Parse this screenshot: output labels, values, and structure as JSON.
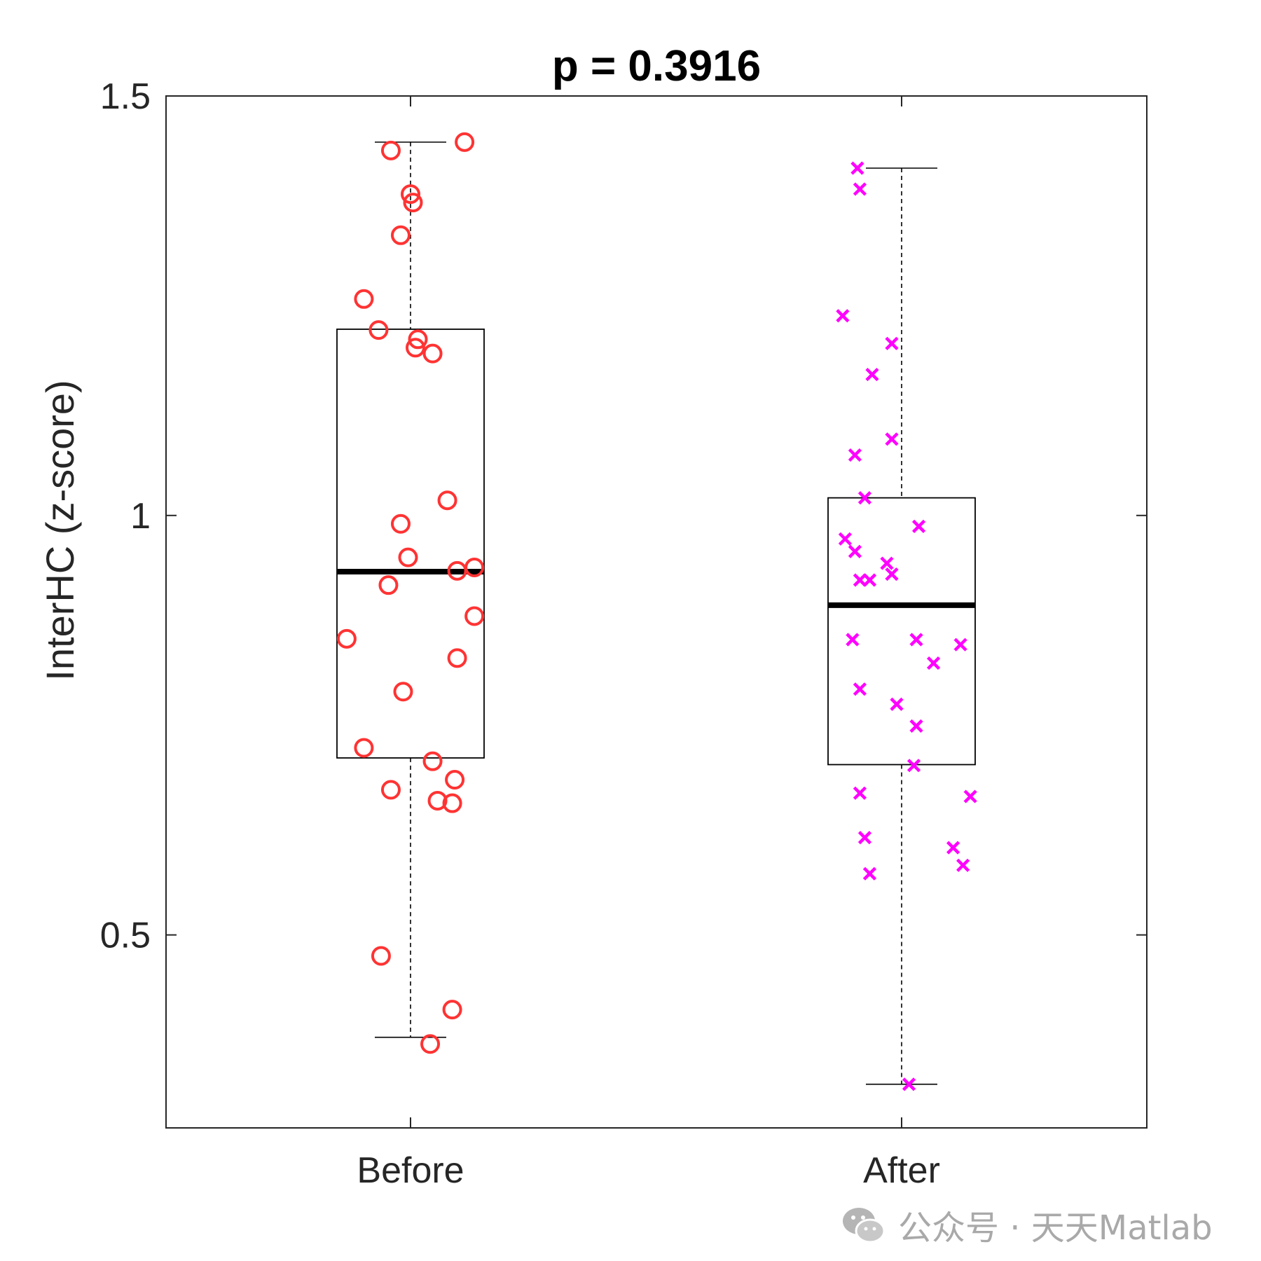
{
  "chart_data": {
    "type": "box",
    "title": "p = 0.3916",
    "xlabel": "",
    "ylabel": "InterHC (z-score)",
    "ylim": [
      0.27,
      1.5
    ],
    "yticks": [
      0.5,
      1,
      1.5
    ],
    "ytick_labels": [
      "0.5",
      "1",
      "1.5"
    ],
    "categories": [
      "Before",
      "After"
    ],
    "grid": false,
    "boxes": [
      {
        "category": "Before",
        "whisker_low": 0.378,
        "q1": 0.711,
        "median": 0.933,
        "q3": 1.222,
        "whisker_high": 1.445
      },
      {
        "category": "After",
        "whisker_low": 0.322,
        "q1": 0.703,
        "median": 0.893,
        "q3": 1.021,
        "whisker_high": 1.414
      }
    ],
    "series": [
      {
        "category": "Before",
        "marker": "circle",
        "color": "#ff3333",
        "points": [
          [
            -0.04,
            1.435
          ],
          [
            0.11,
            1.445
          ],
          [
            0.0,
            1.383
          ],
          [
            0.005,
            1.373
          ],
          [
            -0.02,
            1.334
          ],
          [
            -0.095,
            1.258
          ],
          [
            -0.065,
            1.221
          ],
          [
            0.015,
            1.21
          ],
          [
            0.01,
            1.2
          ],
          [
            0.045,
            1.193
          ],
          [
            0.075,
            1.018
          ],
          [
            -0.02,
            0.99
          ],
          [
            -0.005,
            0.95
          ],
          [
            0.095,
            0.934
          ],
          [
            0.13,
            0.938
          ],
          [
            -0.045,
            0.917
          ],
          [
            0.13,
            0.88
          ],
          [
            -0.13,
            0.853
          ],
          [
            0.095,
            0.83
          ],
          [
            -0.015,
            0.79
          ],
          [
            -0.095,
            0.723
          ],
          [
            0.045,
            0.707
          ],
          [
            0.09,
            0.685
          ],
          [
            -0.04,
            0.673
          ],
          [
            0.055,
            0.66
          ],
          [
            0.085,
            0.657
          ],
          [
            -0.06,
            0.475
          ],
          [
            0.085,
            0.411
          ],
          [
            0.04,
            0.37
          ]
        ]
      },
      {
        "category": "After",
        "marker": "x",
        "color": "#ff00ff",
        "points": [
          [
            -0.09,
            1.414
          ],
          [
            -0.085,
            1.389
          ],
          [
            -0.12,
            1.238
          ],
          [
            -0.02,
            1.205
          ],
          [
            -0.06,
            1.168
          ],
          [
            -0.02,
            1.091
          ],
          [
            -0.095,
            1.072
          ],
          [
            -0.075,
            1.021
          ],
          [
            0.035,
            0.987
          ],
          [
            -0.115,
            0.972
          ],
          [
            -0.095,
            0.957
          ],
          [
            -0.03,
            0.943
          ],
          [
            -0.02,
            0.93
          ],
          [
            -0.085,
            0.923
          ],
          [
            -0.065,
            0.923
          ],
          [
            -0.1,
            0.852
          ],
          [
            0.03,
            0.852
          ],
          [
            0.12,
            0.846
          ],
          [
            0.065,
            0.824
          ],
          [
            -0.085,
            0.793
          ],
          [
            -0.01,
            0.775
          ],
          [
            0.03,
            0.749
          ],
          [
            0.025,
            0.702
          ],
          [
            -0.085,
            0.669
          ],
          [
            0.14,
            0.665
          ],
          [
            -0.075,
            0.616
          ],
          [
            0.105,
            0.604
          ],
          [
            -0.065,
            0.573
          ],
          [
            0.125,
            0.583
          ],
          [
            0.015,
            0.322
          ]
        ]
      }
    ],
    "watermark": "公众号 · 天天Matlab"
  }
}
